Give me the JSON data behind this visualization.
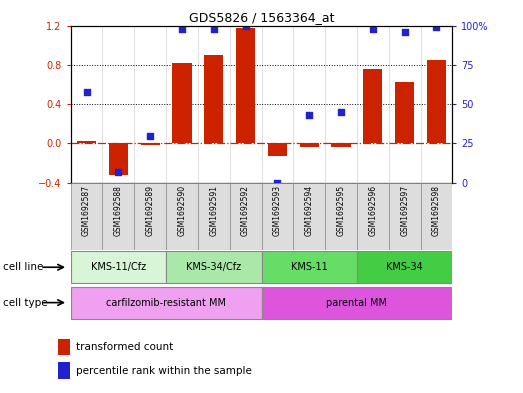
{
  "title": "GDS5826 / 1563364_at",
  "samples": [
    "GSM1692587",
    "GSM1692588",
    "GSM1692589",
    "GSM1692590",
    "GSM1692591",
    "GSM1692592",
    "GSM1692593",
    "GSM1692594",
    "GSM1692595",
    "GSM1692596",
    "GSM1692597",
    "GSM1692598"
  ],
  "bar_values": [
    0.02,
    -0.32,
    -0.02,
    0.82,
    0.9,
    1.18,
    -0.13,
    -0.04,
    -0.04,
    0.76,
    0.63,
    0.85
  ],
  "dot_percentiles": [
    58,
    7,
    30,
    98,
    98,
    100,
    0,
    43,
    45,
    98,
    96,
    99
  ],
  "ylim_left": [
    -0.4,
    1.2
  ],
  "ylim_right": [
    0,
    100
  ],
  "yticks_left": [
    -0.4,
    0.0,
    0.4,
    0.8,
    1.2
  ],
  "yticks_right": [
    0,
    25,
    50,
    75,
    100
  ],
  "hlines": [
    0.4,
    0.8
  ],
  "bar_color": "#cc2200",
  "dot_color": "#2222cc",
  "zero_line_color": "#cc2200",
  "cell_line_groups": [
    {
      "label": "KMS-11/Cfz",
      "start": 0,
      "end": 3,
      "color": "#d8f5d8"
    },
    {
      "label": "KMS-34/Cfz",
      "start": 3,
      "end": 6,
      "color": "#aae8aa"
    },
    {
      "label": "KMS-11",
      "start": 6,
      "end": 9,
      "color": "#66dd66"
    },
    {
      "label": "KMS-34",
      "start": 9,
      "end": 12,
      "color": "#44cc44"
    }
  ],
  "cell_type_groups": [
    {
      "label": "carfilzomib-resistant MM",
      "start": 0,
      "end": 6,
      "color": "#f0a0f0"
    },
    {
      "label": "parental MM",
      "start": 6,
      "end": 12,
      "color": "#dd55dd"
    }
  ],
  "legend_bar_label": "transformed count",
  "legend_dot_label": "percentile rank within the sample",
  "cell_line_label": "cell line",
  "cell_type_label": "cell type"
}
